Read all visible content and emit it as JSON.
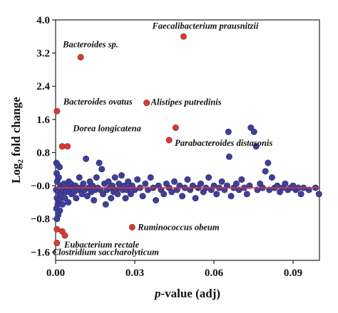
{
  "chart_data": {
    "type": "scatter",
    "xlabel_prefix": "p",
    "xlabel_suffix": "-value (adj)",
    "ylabel_main": "Log",
    "ylabel_sub": "2",
    "ylabel_rest": " fold change",
    "xlim": [
      0,
      0.1
    ],
    "ylim": [
      -1.8,
      4.0
    ],
    "xticks": [
      0.0,
      0.03,
      0.06,
      0.09
    ],
    "xtick_labels": [
      "0.00",
      "0.03",
      "0.06",
      "0.09"
    ],
    "yticks": [
      4.0,
      3.2,
      2.4,
      1.6,
      0.8,
      0.0,
      -0.8,
      -1.6
    ],
    "ytick_labels": [
      "4.0",
      "3.2",
      "2.4",
      "1.6",
      "0.8",
      "−0.0",
      "−0.8",
      "−1.6"
    ],
    "grid": false,
    "colors": {
      "significant": "#e8342c",
      "other": "#3f3f9a",
      "reference_line": "#e8342c",
      "outline": "#444444"
    },
    "reference_line_y": -0.05,
    "significant_points": [
      {
        "x": 0.0485,
        "y": 3.6,
        "label": "Faecalibacterium prausnitzii"
      },
      {
        "x": 0.0095,
        "y": 3.1,
        "label": "Bacteroides sp."
      },
      {
        "x": 0.0345,
        "y": 2.0,
        "label": "Alistipes putredinis"
      },
      {
        "x": 0.0005,
        "y": 1.8,
        "label": "Bacteroides ovatus"
      },
      {
        "x": 0.0455,
        "y": 1.4,
        "label": "Dorea longicatena"
      },
      {
        "x": 0.043,
        "y": 1.1,
        "label": "Parabacteroides distasonis"
      },
      {
        "x": 0.0025,
        "y": 0.95,
        "label": ""
      },
      {
        "x": 0.0045,
        "y": 0.95,
        "label": ""
      },
      {
        "x": 0.029,
        "y": -1.0,
        "label": "Ruminococcus obeum"
      },
      {
        "x": 0.0005,
        "y": -1.05,
        "label": ""
      },
      {
        "x": 0.0025,
        "y": -1.1,
        "label": ""
      },
      {
        "x": 0.0035,
        "y": -1.2,
        "label": "Eubacterium rectale"
      },
      {
        "x": 0.0005,
        "y": -1.38,
        "label": "Clostridium saccharolyticum"
      }
    ],
    "other_points": [
      {
        "x": 0.0003,
        "y": 0.55
      },
      {
        "x": 0.0008,
        "y": 0.5
      },
      {
        "x": 0.0015,
        "y": 0.45
      },
      {
        "x": 0.0004,
        "y": 0.3
      },
      {
        "x": 0.0012,
        "y": 0.2
      },
      {
        "x": 0.0006,
        "y": 0.1
      },
      {
        "x": 0.0018,
        "y": 0.0
      },
      {
        "x": 0.0002,
        "y": -0.1
      },
      {
        "x": 0.001,
        "y": -0.15
      },
      {
        "x": 0.002,
        "y": -0.2
      },
      {
        "x": 0.0005,
        "y": -0.3
      },
      {
        "x": 0.0014,
        "y": -0.35
      },
      {
        "x": 0.0008,
        "y": -0.45
      },
      {
        "x": 0.0003,
        "y": -0.55
      },
      {
        "x": 0.0016,
        "y": -0.6
      },
      {
        "x": 0.001,
        "y": -0.7
      },
      {
        "x": 0.0005,
        "y": -0.8
      },
      {
        "x": 0.0022,
        "y": -0.25
      },
      {
        "x": 0.0028,
        "y": -0.1
      },
      {
        "x": 0.0032,
        "y": 0.05
      },
      {
        "x": 0.0026,
        "y": -0.45
      },
      {
        "x": 0.0035,
        "y": -0.3
      },
      {
        "x": 0.004,
        "y": -0.15
      },
      {
        "x": 0.0045,
        "y": -0.05
      },
      {
        "x": 0.005,
        "y": 0.1
      },
      {
        "x": 0.0048,
        "y": -0.4
      },
      {
        "x": 0.0055,
        "y": -0.1
      },
      {
        "x": 0.006,
        "y": -0.2
      },
      {
        "x": 0.0058,
        "y": 0.05
      },
      {
        "x": 0.0065,
        "y": -0.05
      },
      {
        "x": 0.007,
        "y": -0.15
      },
      {
        "x": 0.0075,
        "y": 0.0
      },
      {
        "x": 0.0078,
        "y": -0.3
      },
      {
        "x": 0.0085,
        "y": -0.1
      },
      {
        "x": 0.009,
        "y": 0.2
      },
      {
        "x": 0.0095,
        "y": -0.05
      },
      {
        "x": 0.01,
        "y": -0.2
      },
      {
        "x": 0.0105,
        "y": 0.05
      },
      {
        "x": 0.011,
        "y": -0.1
      },
      {
        "x": 0.0115,
        "y": 0.65
      },
      {
        "x": 0.012,
        "y": -0.25
      },
      {
        "x": 0.0125,
        "y": -0.05
      },
      {
        "x": 0.013,
        "y": 0.1
      },
      {
        "x": 0.0135,
        "y": -0.15
      },
      {
        "x": 0.014,
        "y": 0.0
      },
      {
        "x": 0.0145,
        "y": -0.35
      },
      {
        "x": 0.015,
        "y": -0.1
      },
      {
        "x": 0.0155,
        "y": 0.2
      },
      {
        "x": 0.016,
        "y": -0.05
      },
      {
        "x": 0.0165,
        "y": 0.55
      },
      {
        "x": 0.017,
        "y": -0.1
      },
      {
        "x": 0.0175,
        "y": 0.4
      },
      {
        "x": 0.018,
        "y": -0.2
      },
      {
        "x": 0.0185,
        "y": 0.05
      },
      {
        "x": 0.019,
        "y": -0.45
      },
      {
        "x": 0.0195,
        "y": -0.1
      },
      {
        "x": 0.02,
        "y": 0.1
      },
      {
        "x": 0.0205,
        "y": -0.05
      },
      {
        "x": 0.021,
        "y": -0.3
      },
      {
        "x": 0.0215,
        "y": 0.0
      },
      {
        "x": 0.022,
        "y": -0.15
      },
      {
        "x": 0.0225,
        "y": 0.2
      },
      {
        "x": 0.023,
        "y": -0.1
      },
      {
        "x": 0.0235,
        "y": -0.2
      },
      {
        "x": 0.024,
        "y": 0.05
      },
      {
        "x": 0.0245,
        "y": -0.05
      },
      {
        "x": 0.025,
        "y": 0.25
      },
      {
        "x": 0.0255,
        "y": -0.1
      },
      {
        "x": 0.026,
        "y": 0.0
      },
      {
        "x": 0.0265,
        "y": -0.3
      },
      {
        "x": 0.027,
        "y": -0.1
      },
      {
        "x": 0.0275,
        "y": 0.1
      },
      {
        "x": 0.028,
        "y": -0.05
      },
      {
        "x": 0.0285,
        "y": -0.2
      },
      {
        "x": 0.029,
        "y": 0.0
      },
      {
        "x": 0.03,
        "y": -0.1
      },
      {
        "x": 0.031,
        "y": 0.15
      },
      {
        "x": 0.032,
        "y": -0.05
      },
      {
        "x": 0.033,
        "y": -0.25
      },
      {
        "x": 0.034,
        "y": 0.05
      },
      {
        "x": 0.035,
        "y": -0.1
      },
      {
        "x": 0.036,
        "y": 0.2
      },
      {
        "x": 0.037,
        "y": -0.05
      },
      {
        "x": 0.038,
        "y": -0.35
      },
      {
        "x": 0.039,
        "y": 0.0
      },
      {
        "x": 0.04,
        "y": -0.1
      },
      {
        "x": 0.041,
        "y": -0.2
      },
      {
        "x": 0.042,
        "y": 0.05
      },
      {
        "x": 0.043,
        "y": -0.05
      },
      {
        "x": 0.044,
        "y": -0.15
      },
      {
        "x": 0.045,
        "y": 0.1
      },
      {
        "x": 0.046,
        "y": -0.1
      },
      {
        "x": 0.047,
        "y": 0.0
      },
      {
        "x": 0.048,
        "y": -0.25
      },
      {
        "x": 0.049,
        "y": -0.05
      },
      {
        "x": 0.05,
        "y": 0.15
      },
      {
        "x": 0.051,
        "y": -0.1
      },
      {
        "x": 0.052,
        "y": 0.0
      },
      {
        "x": 0.053,
        "y": -0.3
      },
      {
        "x": 0.054,
        "y": -0.05
      },
      {
        "x": 0.055,
        "y": 0.05
      },
      {
        "x": 0.056,
        "y": -0.15
      },
      {
        "x": 0.057,
        "y": -0.05
      },
      {
        "x": 0.058,
        "y": 0.2
      },
      {
        "x": 0.059,
        "y": -0.1
      },
      {
        "x": 0.06,
        "y": 0.0
      },
      {
        "x": 0.061,
        "y": -0.2
      },
      {
        "x": 0.062,
        "y": -0.05
      },
      {
        "x": 0.063,
        "y": 0.1
      },
      {
        "x": 0.064,
        "y": -0.1
      },
      {
        "x": 0.065,
        "y": 0.0
      },
      {
        "x": 0.0655,
        "y": 1.3
      },
      {
        "x": 0.0658,
        "y": 0.7
      },
      {
        "x": 0.0665,
        "y": -0.25
      },
      {
        "x": 0.0675,
        "y": -0.05
      },
      {
        "x": 0.0685,
        "y": 0.05
      },
      {
        "x": 0.0695,
        "y": -0.1
      },
      {
        "x": 0.0705,
        "y": 0.15
      },
      {
        "x": 0.0715,
        "y": -0.05
      },
      {
        "x": 0.0725,
        "y": -0.2
      },
      {
        "x": 0.0735,
        "y": 0.0
      },
      {
        "x": 0.074,
        "y": 1.4
      },
      {
        "x": 0.0752,
        "y": 1.3
      },
      {
        "x": 0.076,
        "y": 0.95
      },
      {
        "x": 0.0765,
        "y": -0.1
      },
      {
        "x": 0.0775,
        "y": 0.05
      },
      {
        "x": 0.0785,
        "y": -0.05
      },
      {
        "x": 0.0795,
        "y": 0.35
      },
      {
        "x": 0.0805,
        "y": 0.55
      },
      {
        "x": 0.081,
        "y": -0.1
      },
      {
        "x": 0.082,
        "y": 0.2
      },
      {
        "x": 0.083,
        "y": -0.05
      },
      {
        "x": 0.084,
        "y": 0.0
      },
      {
        "x": 0.085,
        "y": -0.15
      },
      {
        "x": 0.086,
        "y": -0.05
      },
      {
        "x": 0.087,
        "y": 0.05
      },
      {
        "x": 0.088,
        "y": -0.1
      },
      {
        "x": 0.089,
        "y": -0.05
      },
      {
        "x": 0.09,
        "y": 0.0
      },
      {
        "x": 0.091,
        "y": -0.1
      },
      {
        "x": 0.092,
        "y": -0.05
      },
      {
        "x": 0.093,
        "y": -0.2
      },
      {
        "x": 0.094,
        "y": -0.05
      },
      {
        "x": 0.096,
        "y": -0.1
      },
      {
        "x": 0.0985,
        "y": -0.05
      },
      {
        "x": 0.0998,
        "y": -0.2
      }
    ]
  }
}
